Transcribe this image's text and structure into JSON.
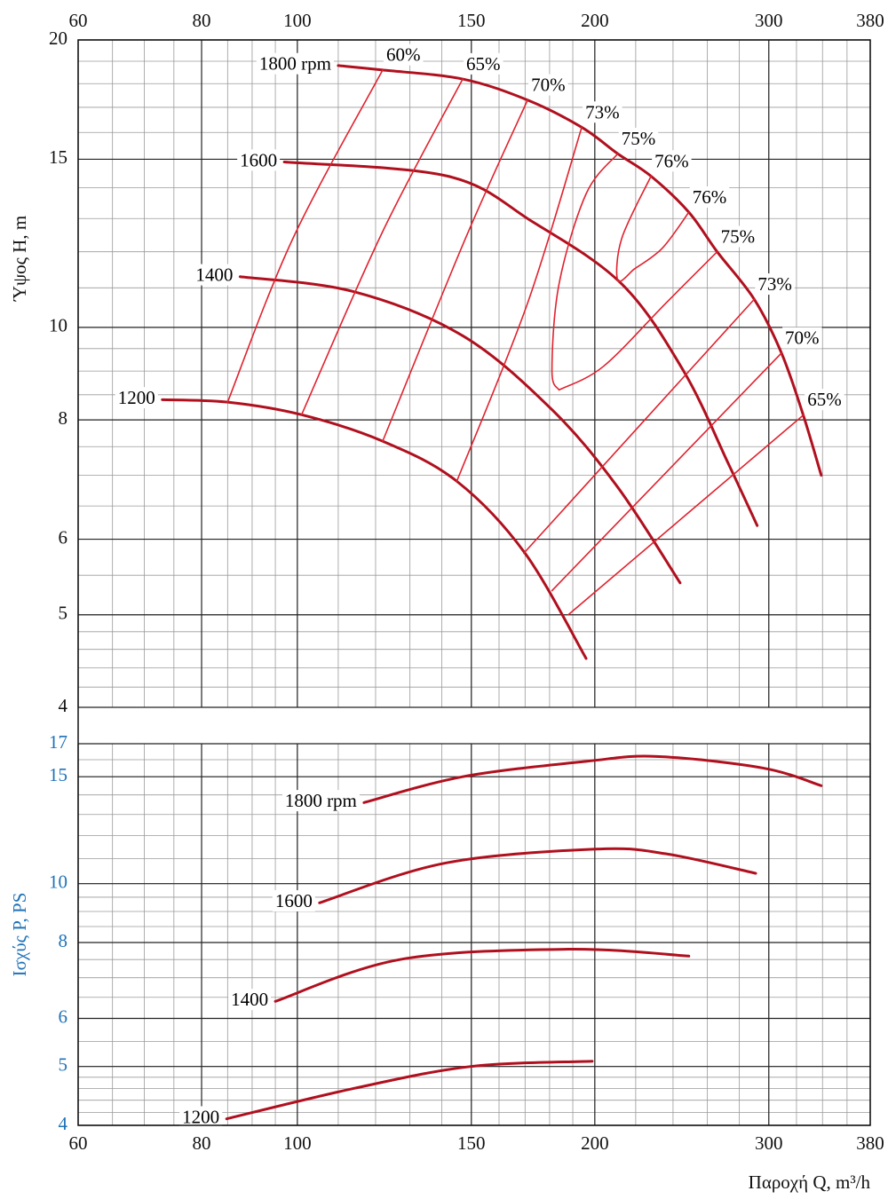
{
  "chart_data": [
    {
      "type": "line",
      "y_label": "Ύψος H, m",
      "log_x": true,
      "log_y": true,
      "grid": true,
      "minor_grid": true,
      "xaxis_side": "top",
      "tick_color": "#111111",
      "label_color": "#111111",
      "xlim": [
        60,
        380
      ],
      "xticks": [
        60,
        80,
        100,
        150,
        200,
        300,
        380
      ],
      "ylim": [
        4,
        20
      ],
      "yticks": [
        4,
        5,
        6,
        8,
        10,
        15,
        20
      ],
      "series": [
        {
          "name": "1800 rpm",
          "color": "#b0101e",
          "width": 3,
          "label_side": "left",
          "x": [
            110,
            122,
            147,
            171,
            194,
            211,
            228,
            249,
            266,
            290,
            309,
            325,
            339
          ],
          "values": [
            18.8,
            18.6,
            18.2,
            17.3,
            16.2,
            15.2,
            14.4,
            13.2,
            12.0,
            10.7,
            9.4,
            8.1,
            7.0
          ]
        },
        {
          "name": "1600",
          "color": "#b0101e",
          "width": 3,
          "label_side": "left",
          "x": [
            97,
            142,
            173,
            213,
            246,
            273,
            292
          ],
          "values": [
            14.9,
            14.4,
            12.9,
            11.1,
            9.0,
            7.2,
            6.2
          ]
        },
        {
          "name": "1400",
          "color": "#b0101e",
          "width": 3,
          "label_side": "left",
          "x": [
            87.5,
            114,
            147,
            181,
            211,
            244
          ],
          "values": [
            11.3,
            10.9,
            9.8,
            8.2,
            6.8,
            5.4
          ]
        },
        {
          "name": "1200",
          "color": "#b0101e",
          "width": 3,
          "label_side": "left",
          "x": [
            73,
            85,
            101,
            122,
            145,
            170,
            196
          ],
          "values": [
            8.4,
            8.35,
            8.1,
            7.6,
            6.9,
            5.8,
            4.5
          ]
        },
        {
          "name": "60%",
          "color": "#e0222e",
          "width": 1.6,
          "label_side": "right",
          "x": [
            122,
            99,
            85
          ],
          "values": [
            18.6,
            12.4,
            8.35
          ]
        },
        {
          "name": "65%",
          "color": "#e0222e",
          "width": 1.6,
          "label_side": "right",
          "x": [
            147,
            122,
            101
          ],
          "values": [
            18.2,
            12.6,
            8.1
          ]
        },
        {
          "name": "70%",
          "color": "#e0222e",
          "width": 1.6,
          "label_side": "right",
          "x": [
            171,
            148,
            122
          ],
          "values": [
            17.3,
            12.4,
            7.6
          ]
        },
        {
          "name": "73%",
          "color": "#e0222e",
          "width": 1.6,
          "label_side": "right",
          "x": [
            194,
            171,
            145
          ],
          "values": [
            16.2,
            10.6,
            6.9
          ]
        },
        {
          "name": "75%",
          "color": "#e0222e",
          "width": 1.6,
          "label_side": "right",
          "x": [
            211,
            196,
            184,
            181,
            184
          ],
          "values": [
            15.2,
            13.8,
            11.1,
            9.0,
            8.6
          ]
        },
        {
          "name": "76%",
          "color": "#e0222e",
          "width": 1.6,
          "label_side": "right",
          "x": [
            228,
            213,
            211,
            219
          ],
          "values": [
            14.4,
            12.4,
            11.2,
            11.5
          ]
        },
        {
          "name": "76%",
          "color": "#e0222e",
          "width": 1.6,
          "label_side": "right",
          "x": [
            249,
            234,
            219
          ],
          "values": [
            13.2,
            12.1,
            11.5
          ]
        },
        {
          "name": "75%",
          "color": "#e0222e",
          "width": 1.6,
          "label_side": "right",
          "x": [
            266,
            236,
            204,
            184
          ],
          "values": [
            12.0,
            10.6,
            9.1,
            8.6
          ]
        },
        {
          "name": "73%",
          "color": "#e0222e",
          "width": 1.6,
          "label_side": "right",
          "x": [
            290,
            169.5
          ],
          "values": [
            10.7,
            5.8
          ]
        },
        {
          "name": "70%",
          "color": "#e0222e",
          "width": 1.6,
          "label_side": "right",
          "x": [
            309,
            181
          ],
          "values": [
            9.4,
            5.3
          ]
        },
        {
          "name": "65%",
          "color": "#e0222e",
          "width": 1.6,
          "label_side": "right",
          "x": [
            325.5,
            188
          ],
          "values": [
            8.1,
            5.0
          ]
        }
      ]
    },
    {
      "type": "line",
      "y_label": "Ισχύς P, PS",
      "x_label": "Παροχή Q, m³/h",
      "log_x": true,
      "log_y": true,
      "grid": true,
      "minor_grid": true,
      "xaxis_side": "bottom",
      "tick_color": "#1f72b8",
      "label_color": "#1f72b8",
      "xlim": [
        60,
        380
      ],
      "xticks": [
        60,
        80,
        100,
        150,
        200,
        300,
        380
      ],
      "ylim": [
        4,
        17
      ],
      "yticks": [
        4,
        5,
        6,
        8,
        10,
        15,
        17
      ],
      "series": [
        {
          "name": "1800 rpm",
          "color": "#b0101e",
          "width": 3,
          "label_side": "left",
          "x": [
            116.8,
            147,
            196,
            231,
            296,
            339
          ],
          "values": [
            13.6,
            15.0,
            15.9,
            16.2,
            15.5,
            14.5
          ]
        },
        {
          "name": "1600",
          "color": "#b0101e",
          "width": 3,
          "label_side": "left",
          "x": [
            105.3,
            140.7,
            200,
            236,
            291
          ],
          "values": [
            9.3,
            10.8,
            11.4,
            11.2,
            10.4
          ]
        },
        {
          "name": "1400",
          "color": "#b0101e",
          "width": 3,
          "label_side": "left",
          "x": [
            95,
            127,
            188,
            249
          ],
          "values": [
            6.4,
            7.5,
            7.8,
            7.6
          ]
        },
        {
          "name": "1200",
          "color": "#b0101e",
          "width": 3,
          "label_side": "left",
          "x": [
            84.8,
            114,
            149.8,
            198.8
          ],
          "values": [
            4.1,
            4.6,
            5.0,
            5.1
          ]
        }
      ]
    }
  ]
}
